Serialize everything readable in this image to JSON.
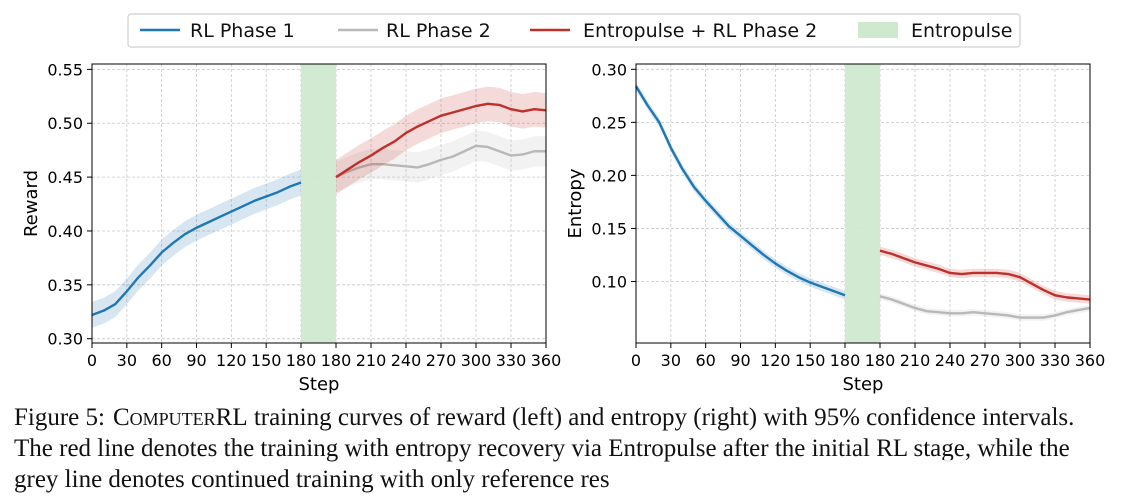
{
  "legend": [
    {
      "label": "RL Phase 1",
      "color": "#1f77b4",
      "kind": "line"
    },
    {
      "label": "RL Phase 2",
      "color": "#b8b8b8",
      "kind": "line"
    },
    {
      "label": "Entropulse + RL Phase 2",
      "color": "#c0302b",
      "kind": "line"
    },
    {
      "label": "Entropulse",
      "color": "#cfe9cf",
      "kind": "patch"
    }
  ],
  "chart_data": [
    {
      "type": "line",
      "title": "",
      "xlabel": "Step",
      "ylabel": "Reward",
      "ylim": [
        0.296,
        0.555
      ],
      "yticks": [
        "0.30",
        "0.35",
        "0.40",
        "0.45",
        "0.50",
        "0.55"
      ],
      "xticks": [
        "0",
        "30",
        "60",
        "90",
        "120",
        "150",
        "180",
        "180",
        "210",
        "240",
        "270",
        "300",
        "330",
        "360"
      ],
      "grid": true,
      "shaded_region": {
        "label": "Entropulse",
        "between_x_tick_indices": [
          6,
          7
        ]
      },
      "series": [
        {
          "name": "RL Phase 1",
          "color": "#1f77b4",
          "segment": "left",
          "x": [
            0,
            10,
            20,
            30,
            40,
            50,
            60,
            70,
            80,
            90,
            100,
            110,
            120,
            130,
            140,
            150,
            160,
            170,
            180
          ],
          "y": [
            0.322,
            0.326,
            0.332,
            0.344,
            0.357,
            0.368,
            0.38,
            0.389,
            0.397,
            0.403,
            0.408,
            0.413,
            0.418,
            0.423,
            0.428,
            0.432,
            0.436,
            0.441,
            0.445
          ],
          "ci": 0.012
        },
        {
          "name": "RL Phase 2",
          "color": "#b8b8b8",
          "segment": "right",
          "x": [
            180,
            190,
            200,
            210,
            220,
            230,
            240,
            250,
            260,
            270,
            280,
            290,
            300,
            310,
            320,
            330,
            340,
            350,
            360
          ],
          "y": [
            0.45,
            0.455,
            0.459,
            0.462,
            0.462,
            0.461,
            0.46,
            0.459,
            0.462,
            0.466,
            0.469,
            0.474,
            0.479,
            0.478,
            0.474,
            0.47,
            0.471,
            0.474,
            0.474
          ],
          "ci": 0.014
        },
        {
          "name": "Entropulse + RL Phase 2",
          "color": "#c0302b",
          "segment": "right",
          "x": [
            180,
            190,
            200,
            210,
            220,
            230,
            240,
            250,
            260,
            270,
            280,
            290,
            300,
            310,
            320,
            330,
            340,
            350,
            360
          ],
          "y": [
            0.45,
            0.457,
            0.464,
            0.47,
            0.477,
            0.483,
            0.491,
            0.497,
            0.502,
            0.507,
            0.51,
            0.513,
            0.516,
            0.518,
            0.517,
            0.513,
            0.511,
            0.513,
            0.512
          ],
          "ci": 0.016
        }
      ]
    },
    {
      "type": "line",
      "title": "",
      "xlabel": "Step",
      "ylabel": "Entropy",
      "ylim": [
        0.042,
        0.305
      ],
      "yticks": [
        "0.10",
        "0.15",
        "0.20",
        "0.25",
        "0.30"
      ],
      "xticks": [
        "0",
        "30",
        "60",
        "90",
        "120",
        "150",
        "180",
        "180",
        "210",
        "240",
        "270",
        "300",
        "330",
        "360"
      ],
      "grid": true,
      "shaded_region": {
        "label": "Entropulse",
        "between_x_tick_indices": [
          6,
          7
        ]
      },
      "series": [
        {
          "name": "RL Phase 1",
          "color": "#1f77b4",
          "segment": "left",
          "x": [
            0,
            10,
            20,
            30,
            40,
            50,
            60,
            70,
            80,
            90,
            100,
            110,
            120,
            130,
            140,
            150,
            160,
            170,
            180
          ],
          "y": [
            0.284,
            0.266,
            0.25,
            0.226,
            0.206,
            0.189,
            0.176,
            0.164,
            0.152,
            0.143,
            0.134,
            0.125,
            0.117,
            0.11,
            0.104,
            0.099,
            0.095,
            0.091,
            0.087
          ],
          "ci": 0.004
        },
        {
          "name": "RL Phase 2",
          "color": "#b8b8b8",
          "segment": "right",
          "x": [
            180,
            190,
            200,
            210,
            220,
            230,
            240,
            250,
            260,
            270,
            280,
            290,
            300,
            310,
            320,
            330,
            340,
            350,
            360
          ],
          "y": [
            0.086,
            0.083,
            0.079,
            0.075,
            0.072,
            0.071,
            0.07,
            0.07,
            0.071,
            0.07,
            0.069,
            0.068,
            0.066,
            0.066,
            0.066,
            0.068,
            0.071,
            0.073,
            0.075
          ],
          "ci": 0.003
        },
        {
          "name": "Entropulse + RL Phase 2",
          "color": "#c0302b",
          "segment": "right",
          "x": [
            180,
            190,
            200,
            210,
            220,
            230,
            240,
            250,
            260,
            270,
            280,
            290,
            300,
            310,
            320,
            330,
            340,
            350,
            360
          ],
          "y": [
            0.129,
            0.126,
            0.122,
            0.118,
            0.115,
            0.112,
            0.108,
            0.107,
            0.108,
            0.108,
            0.108,
            0.107,
            0.104,
            0.098,
            0.092,
            0.087,
            0.085,
            0.084,
            0.083
          ],
          "ci": 0.004
        }
      ]
    }
  ],
  "caption": {
    "label": "Figure 5:",
    "name": "ComputerRL",
    "text": " training curves of reward (left) and entropy (right) with 95% confidence intervals. The red line denotes the training with entropy recovery via Entropulse after the initial RL stage, while the grey line denotes continued training with only reference res"
  }
}
